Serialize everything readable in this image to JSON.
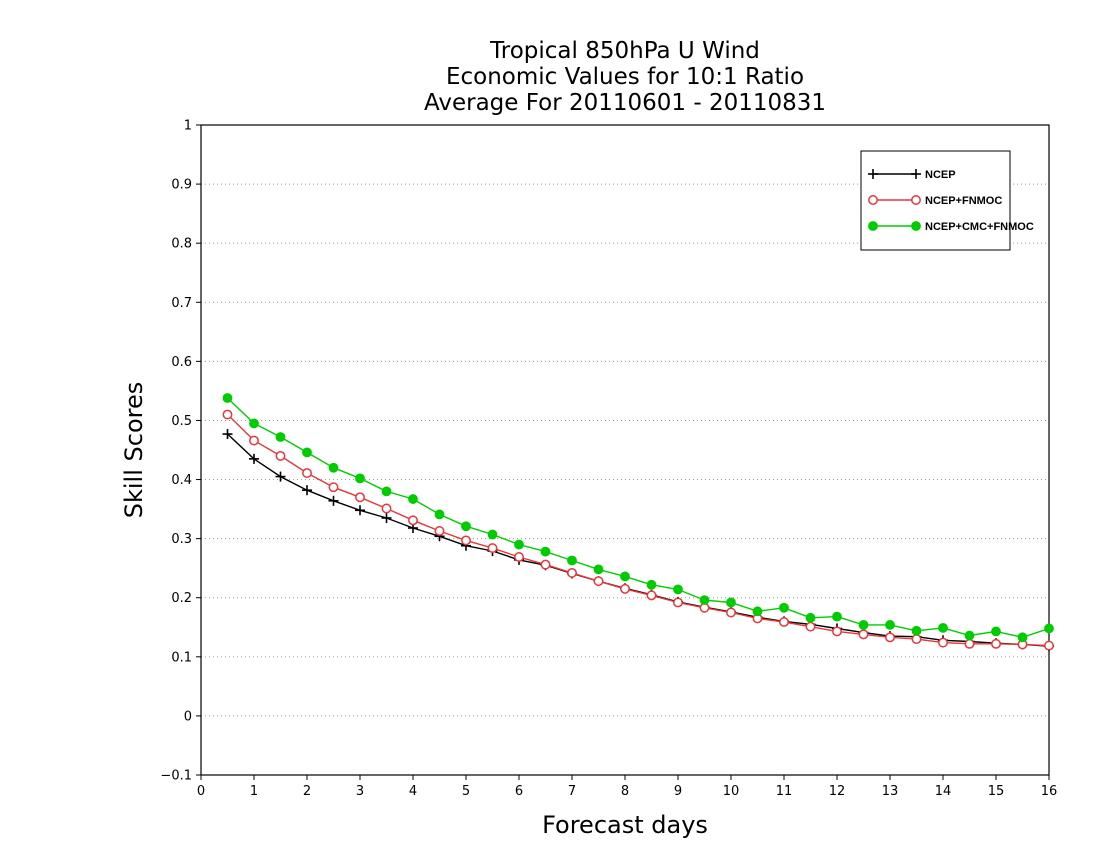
{
  "chart_data": {
    "type": "line",
    "title": [
      "Tropical 850hPa U Wind",
      "Economic Values for 10:1 Ratio",
      "Average For 20110601 - 20110831"
    ],
    "xlabel": "Forecast days",
    "ylabel": "Skill Scores",
    "xlim": [
      0,
      16
    ],
    "ylim": [
      -0.1,
      1
    ],
    "xticks": [
      "0",
      "1",
      "2",
      "3",
      "4",
      "5",
      "6",
      "7",
      "8",
      "9",
      "10",
      "11",
      "12",
      "13",
      "14",
      "15",
      "16"
    ],
    "yticks": [
      "−0.1",
      "0",
      "0.1",
      "0.2",
      "0.3",
      "0.4",
      "0.5",
      "0.6",
      "0.7",
      "0.8",
      "0.9",
      "1"
    ],
    "grid": true,
    "legend_position": "top-right",
    "x": [
      0.5,
      1,
      1.5,
      2,
      2.5,
      3,
      3.5,
      4,
      4.5,
      5,
      5.5,
      6,
      6.5,
      7,
      7.5,
      8,
      8.5,
      9,
      9.5,
      10,
      10.5,
      11,
      11.5,
      12,
      12.5,
      13,
      13.5,
      14,
      14.5,
      15,
      15.5,
      16
    ],
    "series": [
      {
        "name": "NCEP",
        "color": "#000000",
        "marker": "plus",
        "values": [
          0.477,
          0.435,
          0.405,
          0.382,
          0.364,
          0.348,
          0.335,
          0.318,
          0.304,
          0.288,
          0.279,
          0.264,
          0.255,
          0.241,
          0.228,
          0.216,
          0.205,
          0.193,
          0.184,
          0.176,
          0.167,
          0.16,
          0.155,
          0.148,
          0.141,
          0.135,
          0.134,
          0.128,
          0.126,
          0.123,
          0.121,
          0.118
        ]
      },
      {
        "name": "NCEP+FNMOC",
        "color": "#e8363a",
        "marker": "open-circle",
        "values": [
          0.51,
          0.466,
          0.44,
          0.411,
          0.387,
          0.37,
          0.351,
          0.331,
          0.313,
          0.297,
          0.284,
          0.269,
          0.256,
          0.242,
          0.228,
          0.215,
          0.204,
          0.192,
          0.183,
          0.175,
          0.165,
          0.159,
          0.151,
          0.143,
          0.138,
          0.133,
          0.13,
          0.124,
          0.122,
          0.122,
          0.121,
          0.119
        ]
      },
      {
        "name": "NCEP+CMC+FNMOC",
        "color": "#00cc00",
        "marker": "filled-circle",
        "values": [
          0.538,
          0.495,
          0.472,
          0.446,
          0.42,
          0.402,
          0.38,
          0.367,
          0.341,
          0.321,
          0.307,
          0.29,
          0.278,
          0.263,
          0.248,
          0.236,
          0.222,
          0.214,
          0.196,
          0.192,
          0.177,
          0.183,
          0.166,
          0.168,
          0.154,
          0.154,
          0.144,
          0.149,
          0.136,
          0.143,
          0.133,
          0.148
        ]
      }
    ]
  }
}
